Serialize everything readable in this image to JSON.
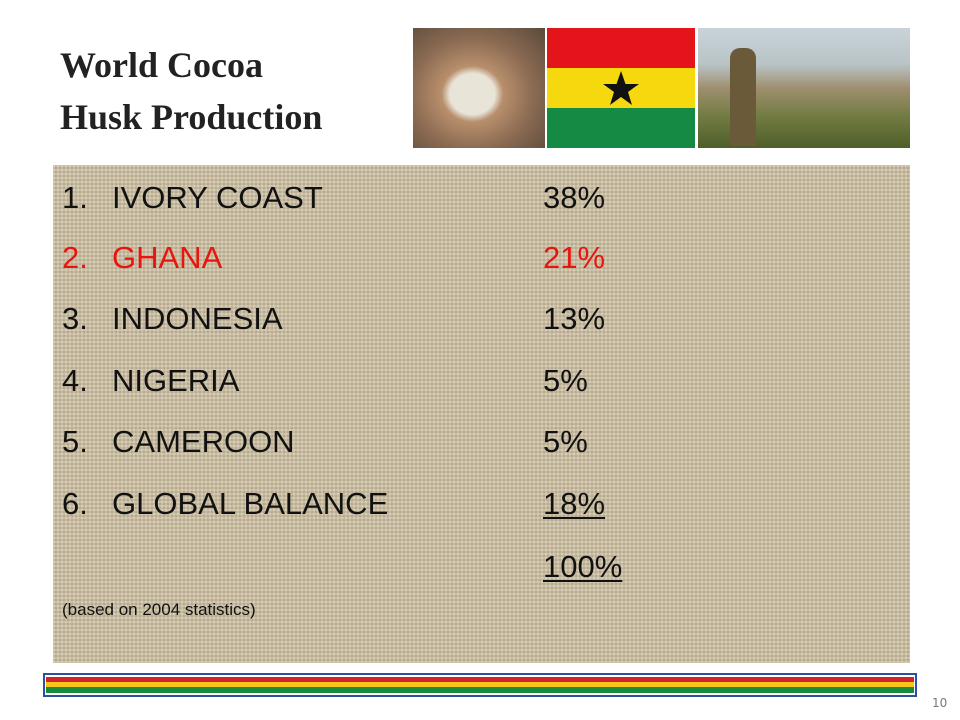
{
  "title": {
    "lines": [
      "World Cocoa",
      "Husk Production"
    ]
  },
  "list": {
    "items": [
      {
        "number": "1.",
        "name": "IVORY COAST",
        "share": "38%"
      },
      {
        "number": "2.",
        "name": "GHANA",
        "share": "21%"
      },
      {
        "number": "3.",
        "name": "INDONESIA",
        "share": "13%"
      },
      {
        "number": "4.",
        "name": "NIGERIA",
        "share": "5%"
      },
      {
        "number": "5.",
        "name": "CAMEROON",
        "share": "5%"
      },
      {
        "number": "6.",
        "name": "GLOBAL BALANCE",
        "share": "18%"
      }
    ],
    "total": "100%"
  },
  "note": "(based on 2004 statistics)",
  "page_number": "10"
}
